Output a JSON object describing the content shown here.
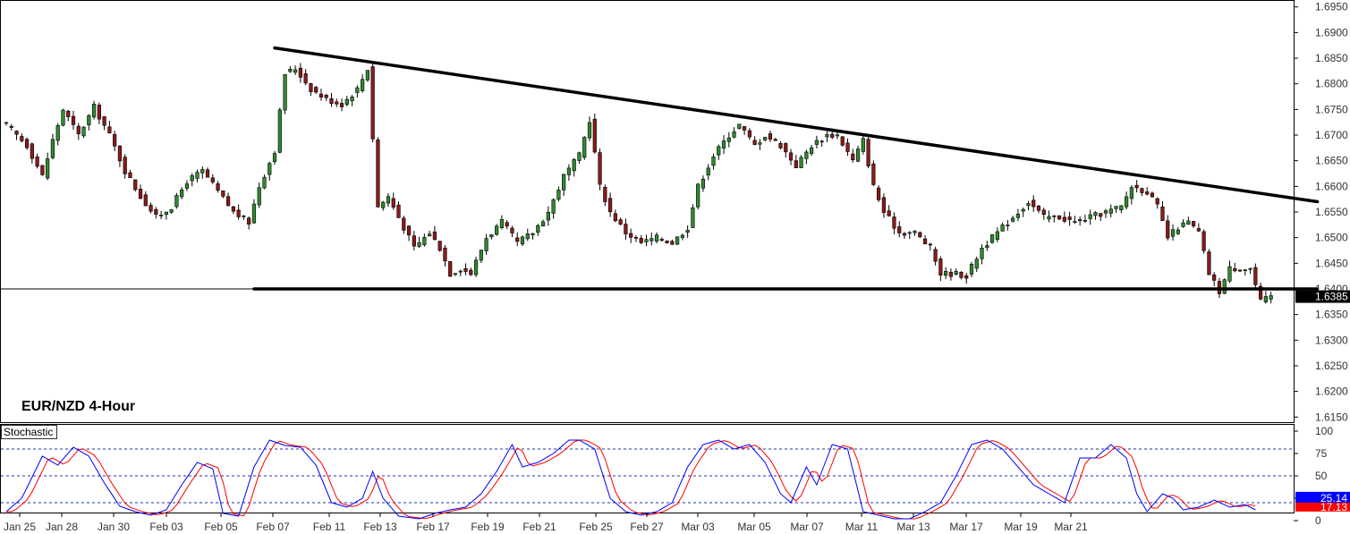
{
  "chart_data": {
    "type": "candlestick",
    "title": "EUR/NZD 4-Hour",
    "price_axis": {
      "ylim": [
        1.614,
        1.696
      ],
      "ticks": [
        "1.6950",
        "1.6900",
        "1.6850",
        "1.6800",
        "1.6750",
        "1.6700",
        "1.6650",
        "1.6600",
        "1.6550",
        "1.6500",
        "1.6450",
        "1.6400",
        "1.6350",
        "1.6300",
        "1.6250",
        "1.6200",
        "1.6150"
      ],
      "current_price_label": "1.6385",
      "current_price": 1.6385,
      "horizontal_level": 1.64
    },
    "x_labels": [
      "Jan 25",
      "Jan 28",
      "Jan 30",
      "Feb 03",
      "Feb 05",
      "Feb 07",
      "Feb 11",
      "Feb 13",
      "Feb 17",
      "Feb 19",
      "Feb 21",
      "Feb 25",
      "Feb 27",
      "Mar 03",
      "Mar 05",
      "Mar 07",
      "Mar 11",
      "Mar 13",
      "Mar 17",
      "Mar 19",
      "Mar 21"
    ],
    "candle_count": 246,
    "price_path": [
      [
        0,
        1.672
      ],
      [
        4,
        1.668
      ],
      [
        7,
        1.662
      ],
      [
        9,
        1.669
      ],
      [
        11,
        1.675
      ],
      [
        14,
        1.67
      ],
      [
        17,
        1.6755
      ],
      [
        20,
        1.67
      ],
      [
        23,
        1.663
      ],
      [
        26,
        1.658
      ],
      [
        29,
        1.654
      ],
      [
        32,
        1.656
      ],
      [
        35,
        1.661
      ],
      [
        38,
        1.663
      ],
      [
        41,
        1.659
      ],
      [
        44,
        1.655
      ],
      [
        47,
        1.653
      ],
      [
        49,
        1.66
      ],
      [
        52,
        1.667
      ],
      [
        54,
        1.682
      ],
      [
        56,
        1.683
      ],
      [
        59,
        1.679
      ],
      [
        62,
        1.677
      ],
      [
        65,
        1.676
      ],
      [
        68,
        1.679
      ],
      [
        70,
        1.683
      ],
      [
        72,
        1.656
      ],
      [
        74,
        1.658
      ],
      [
        77,
        1.652
      ],
      [
        79,
        1.648
      ],
      [
        82,
        1.651
      ],
      [
        84,
        1.648
      ],
      [
        86,
        1.643
      ],
      [
        88,
        1.644
      ],
      [
        90,
        1.643
      ],
      [
        93,
        1.65
      ],
      [
        96,
        1.653
      ],
      [
        99,
        1.649
      ],
      [
        102,
        1.651
      ],
      [
        105,
        1.655
      ],
      [
        108,
        1.662
      ],
      [
        111,
        1.666
      ],
      [
        113,
        1.673
      ],
      [
        115,
        1.66
      ],
      [
        117,
        1.655
      ],
      [
        120,
        1.651
      ],
      [
        123,
        1.649
      ],
      [
        126,
        1.65
      ],
      [
        129,
        1.649
      ],
      [
        132,
        1.652
      ],
      [
        134,
        1.66
      ],
      [
        137,
        1.666
      ],
      [
        140,
        1.67
      ],
      [
        142,
        1.672
      ],
      [
        145,
        1.668
      ],
      [
        147,
        1.67
      ],
      [
        150,
        1.668
      ],
      [
        153,
        1.664
      ],
      [
        156,
        1.668
      ],
      [
        159,
        1.67
      ],
      [
        161,
        1.67
      ],
      [
        164,
        1.665
      ],
      [
        166,
        1.669
      ],
      [
        168,
        1.66
      ],
      [
        170,
        1.655
      ],
      [
        173,
        1.651
      ],
      [
        176,
        1.651
      ],
      [
        179,
        1.648
      ],
      [
        181,
        1.643
      ],
      [
        184,
        1.643
      ],
      [
        186,
        1.6425
      ],
      [
        189,
        1.648
      ],
      [
        192,
        1.651
      ],
      [
        195,
        1.654
      ],
      [
        198,
        1.657
      ],
      [
        201,
        1.654
      ],
      [
        204,
        1.654
      ],
      [
        207,
        1.653
      ],
      [
        210,
        1.654
      ],
      [
        213,
        1.655
      ],
      [
        216,
        1.656
      ],
      [
        218,
        1.66
      ],
      [
        221,
        1.659
      ],
      [
        223,
        1.656
      ],
      [
        225,
        1.65
      ],
      [
        227,
        1.652
      ],
      [
        229,
        1.653
      ],
      [
        231,
        1.651
      ],
      [
        233,
        1.643
      ],
      [
        235,
        1.6395
      ],
      [
        237,
        1.644
      ],
      [
        239,
        1.644
      ],
      [
        241,
        1.644
      ],
      [
        243,
        1.6375
      ],
      [
        245,
        1.6385
      ]
    ],
    "trendlines": [
      {
        "name": "descending resistance",
        "from": {
          "candle": 52,
          "price": 1.687
        },
        "to": {
          "candle": 254,
          "price": 1.657
        }
      },
      {
        "name": "horizontal support",
        "from": {
          "candle": 48,
          "price": 1.64
        },
        "to": {
          "candle": 254,
          "price": 1.64
        }
      }
    ],
    "indicator": {
      "label": "Stochastic",
      "ticks": [
        "100",
        "75",
        "50",
        "25",
        "0"
      ],
      "levels": [
        80,
        50,
        20
      ],
      "main_value_label": "25.14",
      "signal_value_label": "17.13",
      "main_color": "#0000ff",
      "signal_color": "#ff0000",
      "path": [
        [
          0,
          10
        ],
        [
          3,
          25
        ],
        [
          7,
          72
        ],
        [
          10,
          62
        ],
        [
          13,
          82
        ],
        [
          16,
          72
        ],
        [
          19,
          42
        ],
        [
          22,
          16
        ],
        [
          25,
          10
        ],
        [
          28,
          6
        ],
        [
          31,
          12
        ],
        [
          34,
          40
        ],
        [
          37,
          65
        ],
        [
          40,
          58
        ],
        [
          42,
          8
        ],
        [
          45,
          5
        ],
        [
          48,
          60
        ],
        [
          51,
          90
        ],
        [
          54,
          84
        ],
        [
          57,
          82
        ],
        [
          60,
          62
        ],
        [
          63,
          20
        ],
        [
          66,
          15
        ],
        [
          69,
          25
        ],
        [
          71,
          55
        ],
        [
          73,
          25
        ],
        [
          76,
          5
        ],
        [
          80,
          2
        ],
        [
          83,
          8
        ],
        [
          86,
          12
        ],
        [
          89,
          15
        ],
        [
          92,
          30
        ],
        [
          95,
          55
        ],
        [
          98,
          85
        ],
        [
          100,
          60
        ],
        [
          103,
          65
        ],
        [
          106,
          75
        ],
        [
          109,
          90
        ],
        [
          111,
          90
        ],
        [
          114,
          80
        ],
        [
          117,
          25
        ],
        [
          120,
          10
        ],
        [
          123,
          6
        ],
        [
          126,
          10
        ],
        [
          129,
          20
        ],
        [
          132,
          60
        ],
        [
          135,
          85
        ],
        [
          138,
          90
        ],
        [
          141,
          80
        ],
        [
          144,
          85
        ],
        [
          147,
          65
        ],
        [
          150,
          30
        ],
        [
          152,
          20
        ],
        [
          155,
          60
        ],
        [
          157,
          40
        ],
        [
          160,
          85
        ],
        [
          163,
          80
        ],
        [
          166,
          10
        ],
        [
          169,
          6
        ],
        [
          172,
          2
        ],
        [
          175,
          2
        ],
        [
          178,
          10
        ],
        [
          181,
          20
        ],
        [
          184,
          50
        ],
        [
          187,
          85
        ],
        [
          190,
          90
        ],
        [
          193,
          80
        ],
        [
          196,
          60
        ],
        [
          199,
          40
        ],
        [
          202,
          30
        ],
        [
          205,
          20
        ],
        [
          208,
          70
        ],
        [
          211,
          70
        ],
        [
          214,
          85
        ],
        [
          217,
          70
        ],
        [
          219,
          30
        ],
        [
          221,
          10
        ],
        [
          224,
          30
        ],
        [
          226,
          25
        ],
        [
          228,
          12
        ],
        [
          231,
          15
        ],
        [
          234,
          23
        ],
        [
          237,
          15
        ],
        [
          240,
          18
        ],
        [
          242,
          12
        ]
      ]
    }
  }
}
